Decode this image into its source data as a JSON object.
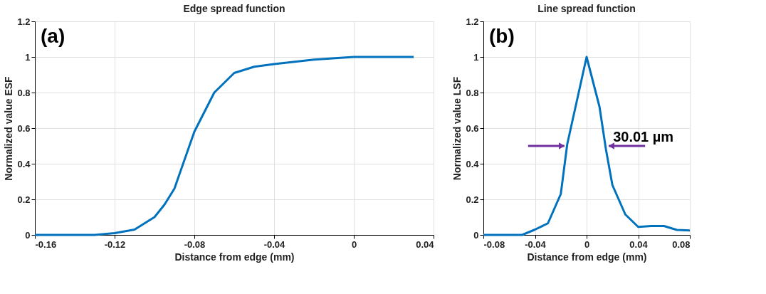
{
  "chart_data": [
    {
      "type": "line",
      "title": "Edge spread function",
      "xlabel": "Distance from edge (mm)",
      "ylabel": "Normalized value ESF",
      "x": [
        -0.16,
        -0.15,
        -0.14,
        -0.13,
        -0.12,
        -0.11,
        -0.1,
        -0.095,
        -0.09,
        -0.08,
        -0.07,
        -0.065,
        -0.06,
        -0.05,
        -0.04,
        -0.02,
        0,
        0.03
      ],
      "series": [
        {
          "color": "#0072bd",
          "values": [
            0,
            0,
            0,
            0,
            0.01,
            0.03,
            0.1,
            0.17,
            0.26,
            0.58,
            0.8,
            0.855,
            0.91,
            0.945,
            0.96,
            0.985,
            1,
            1
          ]
        }
      ],
      "xlim": [
        -0.16,
        0.04
      ],
      "xticks": [
        -0.16,
        -0.12,
        -0.08,
        -0.04,
        0,
        0.04
      ],
      "ylim": [
        0,
        1.2
      ],
      "yticks": [
        0,
        0.2,
        0.4,
        0.6,
        0.8,
        1,
        1.2
      ],
      "grid": true,
      "annotations": [
        "(a)"
      ]
    },
    {
      "type": "line",
      "title": "Line spread function",
      "xlabel": "Distance from edge (mm)",
      "ylabel": "Normalized value LSF",
      "x": [
        -0.08,
        -0.07,
        -0.06,
        -0.05,
        -0.04,
        -0.03,
        -0.02,
        -0.015,
        0,
        0.01,
        0.015,
        0.02,
        0.03,
        0.04,
        0.05,
        0.06,
        0.07,
        0.08
      ],
      "series": [
        {
          "color": "#0072bd",
          "values": [
            0,
            0,
            0,
            0,
            0.03,
            0.065,
            0.23,
            0.51,
            1,
            0.72,
            0.48,
            0.28,
            0.115,
            0.045,
            0.05,
            0.05,
            0.028,
            0.025
          ]
        }
      ],
      "xlim": [
        -0.08,
        0.08
      ],
      "xticks": [
        -0.08,
        -0.04,
        0,
        0.04,
        0.08
      ],
      "ylim": [
        0,
        1.2
      ],
      "yticks": [
        0,
        0.2,
        0.4,
        0.6,
        0.8,
        1,
        1.2
      ],
      "grid": true,
      "annotations": [
        "(b)",
        {
          "text": "30.01 µm",
          "x": 0.015,
          "y": 0.5
        }
      ]
    }
  ]
}
